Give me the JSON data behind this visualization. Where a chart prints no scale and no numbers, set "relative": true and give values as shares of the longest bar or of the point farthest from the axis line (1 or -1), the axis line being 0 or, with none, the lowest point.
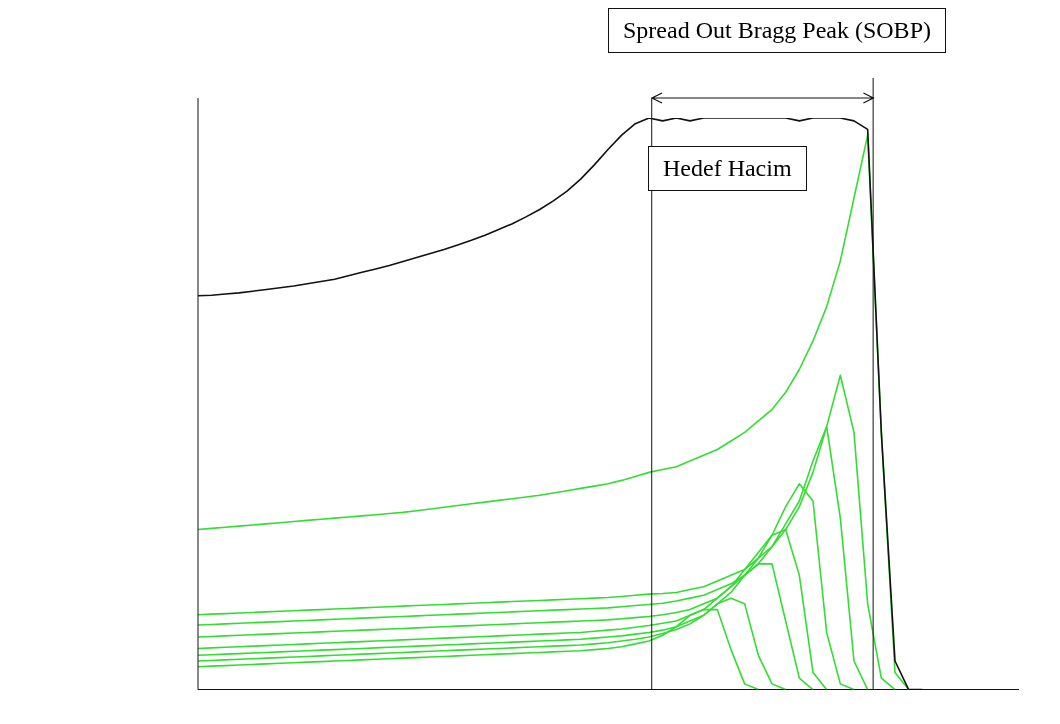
{
  "chart_data": {
    "type": "line",
    "relative": true,
    "legend": false,
    "grid": false,
    "marker": "none",
    "line_style": "solid",
    "annotations": [
      "Spread Out Bragg Peak (SOBP)",
      "Hedef Hacim"
    ],
    "categories": [
      null,
      null,
      null,
      null,
      null,
      null,
      null,
      null,
      null,
      null,
      null,
      null,
      null,
      null,
      null,
      null,
      null,
      null,
      null,
      null,
      null,
      null,
      null,
      null,
      null,
      null,
      null,
      null,
      null,
      null,
      null,
      null,
      null,
      null,
      null,
      null,
      null,
      null,
      null,
      null,
      null,
      null,
      null,
      null,
      null,
      null,
      null,
      null,
      null,
      null,
      null,
      null,
      null,
      null,
      null,
      null,
      null,
      null,
      null,
      null,
      null
    ],
    "series": [
      {
        "color": "#111111",
        "values": [
          0.689,
          0.69,
          0.692,
          0.694,
          0.697,
          0.7,
          0.703,
          0.706,
          0.71,
          0.714,
          0.718,
          0.724,
          0.73,
          0.736,
          0.742,
          0.749,
          0.756,
          0.763,
          0.77,
          0.778,
          0.786,
          0.795,
          0.805,
          0.815,
          0.827,
          0.84,
          0.855,
          0.872,
          0.893,
          0.918,
          0.945,
          0.97,
          0.99,
          1,
          0.995,
          1,
          0.995,
          1,
          1,
          1,
          1,
          1,
          1,
          1,
          0.995,
          1,
          1,
          1,
          0.995,
          0.98,
          0.45,
          0.05,
          0,
          0,
          null,
          null,
          null,
          null,
          null,
          null,
          null
        ]
      },
      {
        "color": "#33dd33",
        "values": [
          0.28,
          0.282,
          0.284,
          0.286,
          0.288,
          0.29,
          0.292,
          0.294,
          0.296,
          0.298,
          0.3,
          0.302,
          0.304,
          0.306,
          0.308,
          0.31,
          0.313,
          0.316,
          0.319,
          0.322,
          0.325,
          0.328,
          0.331,
          0.334,
          0.337,
          0.34,
          0.344,
          0.348,
          0.352,
          0.356,
          0.36,
          0.366,
          0.373,
          0.38,
          0.385,
          0.39,
          0.4,
          0.41,
          0.42,
          0.435,
          0.45,
          0.47,
          0.49,
          0.52,
          0.56,
          0.61,
          0.67,
          0.75,
          0.86,
          0.97,
          0.45,
          0.03,
          0,
          null,
          null,
          null,
          null,
          null,
          null,
          null,
          null
        ]
      },
      {
        "color": "#33dd33",
        "values": [
          0.131,
          0.132,
          0.133,
          0.134,
          0.135,
          0.136,
          0.137,
          0.138,
          0.139,
          0.14,
          0.141,
          0.142,
          0.143,
          0.144,
          0.145,
          0.146,
          0.147,
          0.148,
          0.149,
          0.15,
          0.151,
          0.152,
          0.153,
          0.154,
          0.155,
          0.156,
          0.157,
          0.158,
          0.159,
          0.16,
          0.161,
          0.163,
          0.165,
          0.167,
          0.168,
          0.17,
          0.175,
          0.18,
          0.19,
          0.2,
          0.21,
          0.23,
          0.25,
          0.28,
          0.32,
          0.38,
          0.46,
          0.55,
          0.45,
          0.15,
          0.02,
          0,
          null,
          null,
          null,
          null,
          null,
          null,
          null,
          null,
          null
        ]
      },
      {
        "color": "#33dd33",
        "values": [
          0.113,
          0.114,
          0.115,
          0.116,
          0.117,
          0.118,
          0.119,
          0.12,
          0.121,
          0.122,
          0.123,
          0.124,
          0.125,
          0.126,
          0.127,
          0.128,
          0.129,
          0.13,
          0.131,
          0.132,
          0.133,
          0.134,
          0.135,
          0.136,
          0.137,
          0.138,
          0.139,
          0.14,
          0.141,
          0.142,
          0.143,
          0.145,
          0.147,
          0.149,
          0.151,
          0.155,
          0.16,
          0.165,
          0.175,
          0.185,
          0.2,
          0.22,
          0.25,
          0.29,
          0.33,
          0.4,
          0.46,
          0.3,
          0.05,
          0,
          null,
          null,
          null,
          null,
          null,
          null,
          null,
          null,
          null,
          null,
          null
        ]
      },
      {
        "color": "#33dd33",
        "values": [
          0.092,
          0.093,
          0.094,
          0.095,
          0.096,
          0.097,
          0.098,
          0.099,
          0.1,
          0.101,
          0.102,
          0.103,
          0.104,
          0.105,
          0.106,
          0.107,
          0.108,
          0.109,
          0.11,
          0.111,
          0.112,
          0.113,
          0.114,
          0.115,
          0.116,
          0.117,
          0.118,
          0.119,
          0.12,
          0.121,
          0.122,
          0.124,
          0.126,
          0.128,
          0.131,
          0.135,
          0.14,
          0.15,
          0.16,
          0.18,
          0.2,
          0.23,
          0.27,
          0.32,
          0.36,
          0.33,
          0.1,
          0.01,
          0,
          null,
          null,
          null,
          null,
          null,
          null,
          null,
          null,
          null,
          null,
          null,
          null
        ]
      },
      {
        "color": "#33dd33",
        "values": [
          0.072,
          0.073,
          0.074,
          0.075,
          0.076,
          0.077,
          0.078,
          0.079,
          0.08,
          0.081,
          0.082,
          0.083,
          0.084,
          0.085,
          0.086,
          0.087,
          0.088,
          0.089,
          0.09,
          0.091,
          0.092,
          0.093,
          0.094,
          0.095,
          0.096,
          0.097,
          0.098,
          0.099,
          0.1,
          0.102,
          0.104,
          0.106,
          0.109,
          0.112,
          0.116,
          0.12,
          0.13,
          0.14,
          0.16,
          0.18,
          0.21,
          0.24,
          0.27,
          0.28,
          0.2,
          0.03,
          0,
          null,
          null,
          null,
          null,
          null,
          null,
          null,
          null,
          null,
          null,
          null,
          null,
          null,
          null
        ]
      },
      {
        "color": "#33dd33",
        "values": [
          0.06,
          0.061,
          0.062,
          0.063,
          0.064,
          0.065,
          0.066,
          0.067,
          0.068,
          0.069,
          0.07,
          0.071,
          0.072,
          0.073,
          0.074,
          0.075,
          0.076,
          0.077,
          0.078,
          0.079,
          0.08,
          0.081,
          0.082,
          0.083,
          0.084,
          0.085,
          0.086,
          0.087,
          0.088,
          0.09,
          0.092,
          0.094,
          0.097,
          0.1,
          0.104,
          0.11,
          0.12,
          0.13,
          0.15,
          0.17,
          0.2,
          0.22,
          0.22,
          0.12,
          0.02,
          0,
          null,
          null,
          null,
          null,
          null,
          null,
          null,
          null,
          null,
          null,
          null,
          null,
          null,
          null,
          null
        ]
      },
      {
        "color": "#33dd33",
        "values": [
          0.05,
          0.051,
          0.052,
          0.053,
          0.054,
          0.055,
          0.056,
          0.057,
          0.058,
          0.059,
          0.06,
          0.061,
          0.062,
          0.063,
          0.064,
          0.065,
          0.066,
          0.067,
          0.068,
          0.069,
          0.07,
          0.071,
          0.072,
          0.073,
          0.074,
          0.075,
          0.076,
          0.077,
          0.078,
          0.08,
          0.082,
          0.085,
          0.088,
          0.092,
          0.098,
          0.105,
          0.115,
          0.13,
          0.15,
          0.16,
          0.15,
          0.06,
          0.01,
          0,
          null,
          null,
          null,
          null,
          null,
          null,
          null,
          null,
          null,
          null,
          null,
          null,
          null,
          null,
          null,
          null,
          null
        ]
      },
      {
        "color": "#33dd33",
        "values": [
          0.04,
          0.041,
          0.042,
          0.043,
          0.044,
          0.045,
          0.046,
          0.047,
          0.048,
          0.049,
          0.05,
          0.051,
          0.052,
          0.053,
          0.054,
          0.055,
          0.056,
          0.057,
          0.058,
          0.059,
          0.06,
          0.061,
          0.062,
          0.063,
          0.064,
          0.065,
          0.066,
          0.067,
          0.068,
          0.07,
          0.072,
          0.075,
          0.08,
          0.085,
          0.095,
          0.11,
          0.13,
          0.14,
          0.14,
          0.07,
          0.01,
          0,
          null,
          null,
          null,
          null,
          null,
          null,
          null,
          null,
          null,
          null,
          null,
          null,
          null,
          null,
          null,
          null,
          null,
          null,
          null
        ]
      }
    ]
  }
}
